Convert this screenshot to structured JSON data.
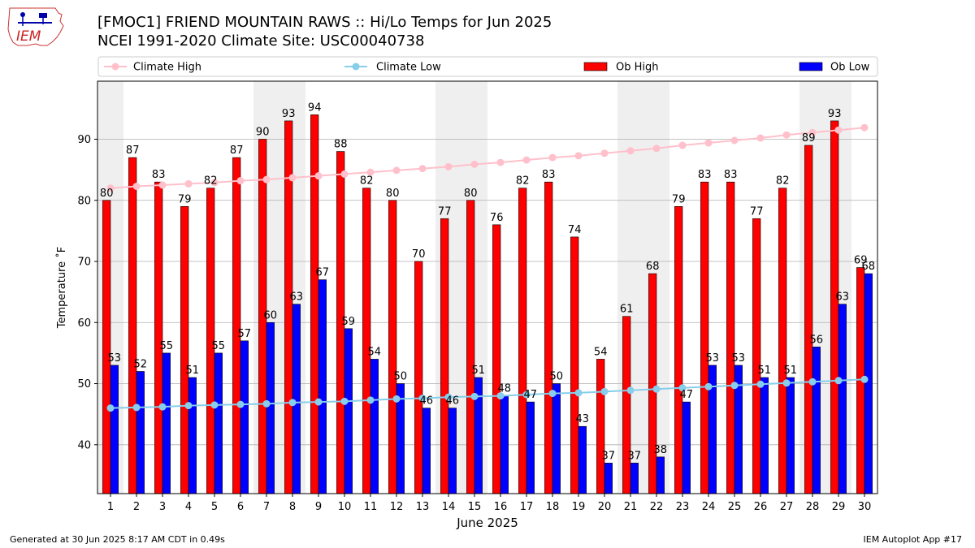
{
  "header": {
    "title_line1": "[FMOC1] FRIEND MOUNTAIN RAWS :: Hi/Lo Temps for Jun 2025",
    "title_line2": "NCEI 1991-2020 Climate Site: USC00040738"
  },
  "logo": {
    "text": "IEM"
  },
  "footer": {
    "left": "Generated at 30 Jun 2025 8:17 AM CDT in 0.49s",
    "right": "IEM Autoplot App #17"
  },
  "chart_data": {
    "type": "bar",
    "xlabel": "June 2025",
    "ylabel": "Temperature ˚F",
    "ylim": [
      32,
      99.5
    ],
    "yticks": [
      40,
      50,
      60,
      70,
      80,
      90
    ],
    "grid": true,
    "legend_position": "top",
    "weekend_shading": [
      1,
      7,
      8,
      14,
      15,
      21,
      22,
      28,
      29
    ],
    "categories": [
      "1",
      "2",
      "3",
      "4",
      "5",
      "6",
      "7",
      "8",
      "9",
      "10",
      "11",
      "12",
      "13",
      "14",
      "15",
      "16",
      "17",
      "18",
      "19",
      "20",
      "21",
      "22",
      "23",
      "24",
      "25",
      "26",
      "27",
      "28",
      "29",
      "30"
    ],
    "series": [
      {
        "name": "Climate High",
        "kind": "line",
        "color": "#ffc0cb",
        "values": [
          82.0,
          82.3,
          82.5,
          82.7,
          82.9,
          83.2,
          83.4,
          83.7,
          84.0,
          84.3,
          84.6,
          84.9,
          85.2,
          85.5,
          85.9,
          86.2,
          86.6,
          87.0,
          87.3,
          87.7,
          88.1,
          88.5,
          89.0,
          89.4,
          89.8,
          90.2,
          90.7,
          91.1,
          91.5,
          91.9
        ]
      },
      {
        "name": "Climate Low",
        "kind": "line",
        "color": "#87ceeb",
        "values": [
          46.0,
          46.1,
          46.2,
          46.4,
          46.5,
          46.6,
          46.7,
          46.9,
          47.0,
          47.1,
          47.3,
          47.5,
          47.6,
          47.8,
          47.9,
          48.0,
          48.2,
          48.4,
          48.5,
          48.7,
          48.9,
          49.1,
          49.3,
          49.5,
          49.7,
          49.9,
          50.1,
          50.3,
          50.5,
          50.7
        ]
      },
      {
        "name": "Ob High",
        "kind": "bar",
        "color": "#ff0000",
        "values": [
          80,
          87,
          83,
          79,
          82,
          87,
          90,
          93,
          94,
          88,
          82,
          80,
          70,
          77,
          80,
          76,
          82,
          83,
          74,
          54,
          61,
          68,
          79,
          83,
          83,
          77,
          82,
          89,
          93,
          69
        ]
      },
      {
        "name": "Ob Low",
        "kind": "bar",
        "color": "#0000ff",
        "values": [
          53,
          52,
          55,
          51,
          55,
          57,
          60,
          63,
          67,
          59,
          54,
          50,
          46,
          46,
          51,
          48,
          47,
          50,
          43,
          37,
          37,
          38,
          47,
          53,
          53,
          51,
          51,
          56,
          63,
          68
        ]
      }
    ]
  }
}
